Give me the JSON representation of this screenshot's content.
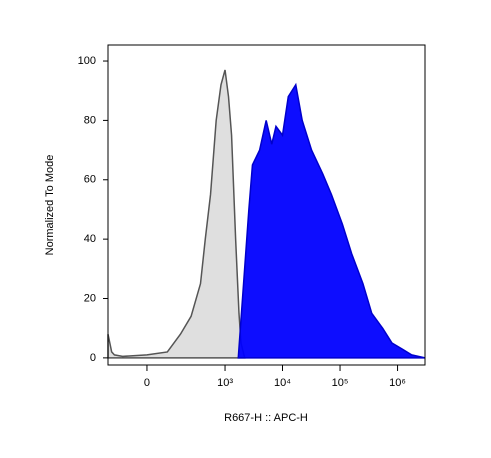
{
  "chart_data": {
    "type": "area",
    "x_label": "R667-H :: APC-H",
    "y_label": "Normalized To Mode",
    "xscale": "biexponential",
    "xlim": [
      -200,
      3000000
    ],
    "xticks": [
      0,
      {
        "value": 1000,
        "label": "10³"
      },
      {
        "value": 10000,
        "label": "10⁴"
      },
      {
        "value": 100000,
        "label": "10⁵"
      },
      {
        "value": 1000000,
        "label": "10⁶"
      }
    ],
    "ylim": [
      -2.4,
      105.4
    ],
    "yticks": [
      0,
      20,
      40,
      60,
      80,
      100
    ],
    "series": [
      {
        "color": "#dddddd",
        "edge_color": "#555555",
        "x": [
          -200,
          -170,
          -150,
          -100,
          0,
          80,
          157,
          250,
          370,
          450,
          557,
          700,
          850,
          1000,
          1150,
          1300,
          1530,
          1750,
          1900,
          2200
        ],
        "values": [
          8,
          2,
          1,
          0.5,
          1,
          2,
          8,
          14,
          25,
          40,
          55,
          80,
          92,
          97,
          88,
          75,
          40,
          15,
          5,
          0
        ]
      },
      {
        "color": "#0000ff",
        "edge_color": "#0000cc",
        "x": [
          1700,
          2600,
          3000,
          4000,
          5200,
          6500,
          7700,
          10000,
          12600,
          17000,
          22000,
          32000,
          50000,
          71000,
          110000,
          160000,
          250000,
          356000,
          550000,
          800000,
          1200000,
          1760000,
          3000000
        ],
        "values": [
          0,
          50,
          65,
          70,
          80,
          72,
          78,
          75,
          88,
          92,
          80,
          70,
          62,
          55,
          45,
          35,
          25,
          15,
          10,
          5,
          3,
          1,
          0
        ]
      }
    ]
  }
}
